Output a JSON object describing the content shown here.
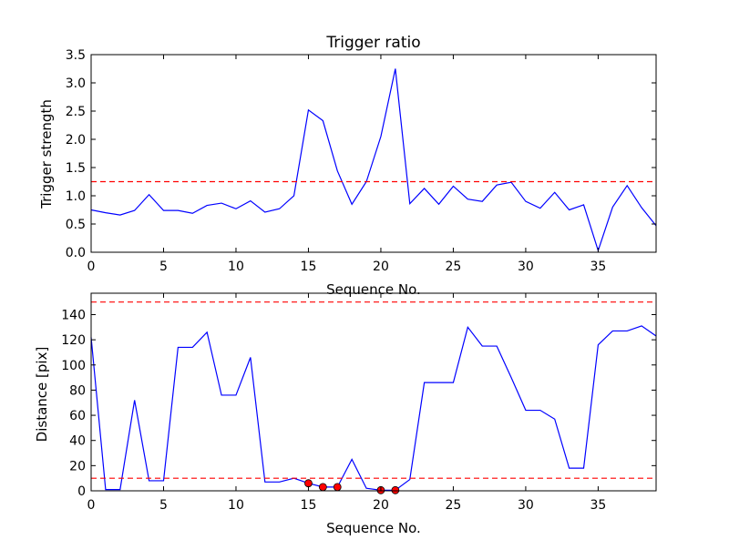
{
  "chart_data": [
    {
      "type": "line",
      "title": "Trigger ratio",
      "xlabel": "Sequence No.",
      "ylabel": "Trigger strength",
      "xlim": [
        0,
        39
      ],
      "ylim": [
        0,
        3.5
      ],
      "xticks": [
        "0",
        "5",
        "10",
        "15",
        "20",
        "25",
        "30",
        "35"
      ],
      "yticks": [
        "0.0",
        "0.5",
        "1.0",
        "1.5",
        "2.0",
        "2.5",
        "3.0",
        "3.5"
      ],
      "x": [
        0,
        1,
        2,
        3,
        4,
        5,
        6,
        7,
        8,
        9,
        10,
        11,
        12,
        13,
        14,
        15,
        16,
        17,
        18,
        19,
        20,
        21,
        22,
        23,
        24,
        25,
        26,
        27,
        28,
        29,
        30,
        31,
        32,
        33,
        34,
        35,
        36,
        37,
        38,
        39
      ],
      "series": [
        {
          "values": [
            0.75,
            0.7,
            0.66,
            0.74,
            1.02,
            0.74,
            0.74,
            0.69,
            0.83,
            0.87,
            0.77,
            0.91,
            0.71,
            0.77,
            1.0,
            2.52,
            2.33,
            1.44,
            0.85,
            1.25,
            2.05,
            3.25,
            0.86,
            1.13,
            0.85,
            1.17,
            0.94,
            0.9,
            1.19,
            1.24,
            0.9,
            0.78,
            1.06,
            0.75,
            0.84,
            0.03,
            0.8,
            1.18,
            0.79,
            0.47
          ],
          "color": "#0000ff"
        }
      ],
      "reference_lines": [
        {
          "y": 1.25,
          "color": "#ff0000",
          "style": "dashed"
        }
      ],
      "grid": false
    },
    {
      "type": "line",
      "title": "",
      "xlabel": "Sequence No.",
      "ylabel": "Distance [pix]",
      "xlim": [
        0,
        39
      ],
      "ylim": [
        0,
        157
      ],
      "xticks": [
        "0",
        "5",
        "10",
        "15",
        "20",
        "25",
        "30",
        "35"
      ],
      "yticks": [
        "0",
        "20",
        "40",
        "60",
        "80",
        "100",
        "120",
        "140"
      ],
      "x": [
        0,
        1,
        2,
        3,
        4,
        5,
        6,
        7,
        8,
        9,
        10,
        11,
        12,
        13,
        14,
        15,
        16,
        17,
        18,
        19,
        20,
        21,
        22,
        23,
        24,
        25,
        26,
        27,
        28,
        29,
        30,
        31,
        32,
        33,
        34,
        35,
        36,
        37,
        38,
        39
      ],
      "series": [
        {
          "values": [
            122,
            1,
            1,
            72,
            8,
            8,
            114,
            114,
            126,
            76,
            76,
            106,
            7,
            7,
            10,
            6,
            3,
            3,
            25,
            2,
            0.5,
            0.5,
            9,
            86,
            86,
            86,
            130,
            115,
            115,
            90,
            64,
            64,
            57,
            18,
            18,
            116,
            127,
            127,
            131,
            123
          ],
          "color": "#0000ff"
        }
      ],
      "highlighted_points": {
        "x": [
          15,
          16,
          17,
          20,
          21
        ],
        "y": [
          6,
          3,
          3,
          0.5,
          0.5
        ],
        "color": "#ff0000"
      },
      "reference_lines": [
        {
          "y": 10,
          "color": "#ff0000",
          "style": "dashed"
        },
        {
          "y": 150,
          "color": "#ff0000",
          "style": "dashed"
        }
      ],
      "grid": false
    }
  ]
}
